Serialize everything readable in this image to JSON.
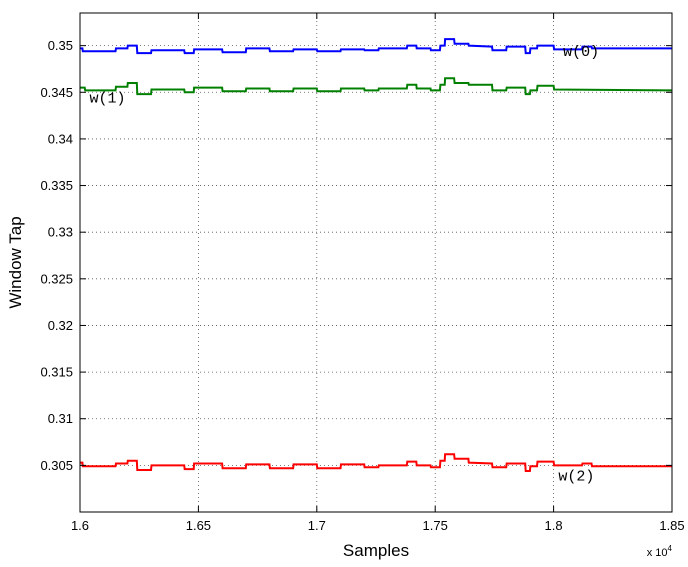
{
  "chart_data": {
    "type": "line",
    "xlabel": "Samples",
    "ylabel": "Window Tap",
    "x_multiplier_label": "x 10",
    "x_multiplier_exponent": "4",
    "xlim": [
      16000,
      18500
    ],
    "ylim": [
      0.3,
      0.3535
    ],
    "x_ticks": [
      16000,
      16500,
      17000,
      17500,
      18000,
      18500
    ],
    "x_tick_labels": [
      "1.6",
      "1.65",
      "1.7",
      "1.75",
      "1.8",
      "1.85"
    ],
    "y_ticks": [
      0.305,
      0.31,
      0.315,
      0.32,
      0.325,
      0.33,
      0.335,
      0.34,
      0.345,
      0.35
    ],
    "y_tick_labels": [
      "0.305",
      "0.31",
      "0.315",
      "0.32",
      "0.325",
      "0.33",
      "0.335",
      "0.34",
      "0.345",
      "0.35"
    ],
    "grid": true,
    "series": [
      {
        "name": "w(0)",
        "color": "#0000ff",
        "points": [
          [
            16000,
            0.3497
          ],
          [
            16010,
            0.3497
          ],
          [
            16012,
            0.3494
          ],
          [
            16150,
            0.3494
          ],
          [
            16152,
            0.3497
          ],
          [
            16200,
            0.3497
          ],
          [
            16202,
            0.35
          ],
          [
            16240,
            0.35
          ],
          [
            16242,
            0.3492
          ],
          [
            16300,
            0.3492
          ],
          [
            16302,
            0.3495
          ],
          [
            16440,
            0.3495
          ],
          [
            16442,
            0.3492
          ],
          [
            16480,
            0.3492
          ],
          [
            16482,
            0.3496
          ],
          [
            16600,
            0.3496
          ],
          [
            16602,
            0.3493
          ],
          [
            16700,
            0.3493
          ],
          [
            16702,
            0.3497
          ],
          [
            16800,
            0.3497
          ],
          [
            16802,
            0.3494
          ],
          [
            16900,
            0.3494
          ],
          [
            16902,
            0.3496
          ],
          [
            17000,
            0.3496
          ],
          [
            17002,
            0.3494
          ],
          [
            17100,
            0.3494
          ],
          [
            17102,
            0.3496
          ],
          [
            17200,
            0.3496
          ],
          [
            17202,
            0.3495
          ],
          [
            17260,
            0.3495
          ],
          [
            17262,
            0.3497
          ],
          [
            17380,
            0.3497
          ],
          [
            17382,
            0.35
          ],
          [
            17420,
            0.35
          ],
          [
            17422,
            0.3497
          ],
          [
            17480,
            0.3497
          ],
          [
            17482,
            0.3495
          ],
          [
            17520,
            0.3495
          ],
          [
            17522,
            0.35
          ],
          [
            17540,
            0.35
          ],
          [
            17542,
            0.3507
          ],
          [
            17580,
            0.3507
          ],
          [
            17582,
            0.3502
          ],
          [
            17640,
            0.3502
          ],
          [
            17642,
            0.35
          ],
          [
            17740,
            0.3499
          ],
          [
            17742,
            0.3495
          ],
          [
            17800,
            0.3495
          ],
          [
            17802,
            0.3499
          ],
          [
            17880,
            0.3499
          ],
          [
            17882,
            0.3492
          ],
          [
            17900,
            0.3492
          ],
          [
            17902,
            0.3497
          ],
          [
            17930,
            0.3497
          ],
          [
            17932,
            0.35
          ],
          [
            18000,
            0.35
          ],
          [
            18002,
            0.3496
          ],
          [
            18120,
            0.3496
          ],
          [
            18122,
            0.3499
          ],
          [
            18160,
            0.3499
          ],
          [
            18162,
            0.3497
          ],
          [
            18500,
            0.3497
          ]
        ]
      },
      {
        "name": "w(1)",
        "color": "#008000",
        "points": [
          [
            16000,
            0.3455
          ],
          [
            16020,
            0.3455
          ],
          [
            16022,
            0.3452
          ],
          [
            16150,
            0.3452
          ],
          [
            16152,
            0.3456
          ],
          [
            16200,
            0.3456
          ],
          [
            16202,
            0.346
          ],
          [
            16240,
            0.346
          ],
          [
            16242,
            0.3448
          ],
          [
            16300,
            0.3448
          ],
          [
            16302,
            0.3453
          ],
          [
            16440,
            0.3453
          ],
          [
            16442,
            0.345
          ],
          [
            16480,
            0.345
          ],
          [
            16482,
            0.3455
          ],
          [
            16600,
            0.3455
          ],
          [
            16602,
            0.3451
          ],
          [
            16700,
            0.3451
          ],
          [
            16702,
            0.3454
          ],
          [
            16800,
            0.3454
          ],
          [
            16802,
            0.3451
          ],
          [
            16900,
            0.3451
          ],
          [
            16902,
            0.3454
          ],
          [
            17000,
            0.3454
          ],
          [
            17002,
            0.3451
          ],
          [
            17100,
            0.3451
          ],
          [
            17102,
            0.3454
          ],
          [
            17200,
            0.3454
          ],
          [
            17202,
            0.3452
          ],
          [
            17260,
            0.3452
          ],
          [
            17262,
            0.3454
          ],
          [
            17380,
            0.3454
          ],
          [
            17382,
            0.3458
          ],
          [
            17420,
            0.3458
          ],
          [
            17422,
            0.3454
          ],
          [
            17480,
            0.3454
          ],
          [
            17482,
            0.3452
          ],
          [
            17520,
            0.3452
          ],
          [
            17522,
            0.3458
          ],
          [
            17540,
            0.3458
          ],
          [
            17542,
            0.3465
          ],
          [
            17580,
            0.3465
          ],
          [
            17582,
            0.346
          ],
          [
            17640,
            0.346
          ],
          [
            17642,
            0.3458
          ],
          [
            17740,
            0.3458
          ],
          [
            17742,
            0.3452
          ],
          [
            17800,
            0.3452
          ],
          [
            17802,
            0.3455
          ],
          [
            17880,
            0.3455
          ],
          [
            17882,
            0.3448
          ],
          [
            17900,
            0.3448
          ],
          [
            17902,
            0.3452
          ],
          [
            17930,
            0.3452
          ],
          [
            17932,
            0.3457
          ],
          [
            18000,
            0.3457
          ],
          [
            18002,
            0.3453
          ],
          [
            18500,
            0.3452
          ]
        ]
      },
      {
        "name": "w(2)",
        "color": "#ff0000",
        "points": [
          [
            16000,
            0.3053
          ],
          [
            16010,
            0.3053
          ],
          [
            16012,
            0.3049
          ],
          [
            16150,
            0.3049
          ],
          [
            16152,
            0.3052
          ],
          [
            16200,
            0.3052
          ],
          [
            16202,
            0.3055
          ],
          [
            16240,
            0.3055
          ],
          [
            16242,
            0.3045
          ],
          [
            16300,
            0.3045
          ],
          [
            16302,
            0.305
          ],
          [
            16440,
            0.305
          ],
          [
            16442,
            0.3046
          ],
          [
            16480,
            0.3046
          ],
          [
            16482,
            0.3052
          ],
          [
            16600,
            0.3052
          ],
          [
            16602,
            0.3047
          ],
          [
            16700,
            0.3047
          ],
          [
            16702,
            0.3051
          ],
          [
            16800,
            0.3051
          ],
          [
            16802,
            0.3047
          ],
          [
            16900,
            0.3047
          ],
          [
            16902,
            0.3051
          ],
          [
            17000,
            0.3051
          ],
          [
            17002,
            0.3047
          ],
          [
            17100,
            0.3047
          ],
          [
            17102,
            0.3051
          ],
          [
            17200,
            0.3051
          ],
          [
            17202,
            0.3048
          ],
          [
            17260,
            0.3048
          ],
          [
            17262,
            0.305
          ],
          [
            17380,
            0.305
          ],
          [
            17382,
            0.3054
          ],
          [
            17420,
            0.3054
          ],
          [
            17422,
            0.305
          ],
          [
            17480,
            0.305
          ],
          [
            17482,
            0.3048
          ],
          [
            17520,
            0.3048
          ],
          [
            17522,
            0.3055
          ],
          [
            17540,
            0.3055
          ],
          [
            17542,
            0.3062
          ],
          [
            17580,
            0.3062
          ],
          [
            17582,
            0.3057
          ],
          [
            17640,
            0.3057
          ],
          [
            17642,
            0.3053
          ],
          [
            17740,
            0.3052
          ],
          [
            17742,
            0.3048
          ],
          [
            17800,
            0.3048
          ],
          [
            17802,
            0.3052
          ],
          [
            17880,
            0.3052
          ],
          [
            17882,
            0.3044
          ],
          [
            17900,
            0.3044
          ],
          [
            17902,
            0.3049
          ],
          [
            17930,
            0.3049
          ],
          [
            17932,
            0.3054
          ],
          [
            18000,
            0.3054
          ],
          [
            18002,
            0.305
          ],
          [
            18120,
            0.305
          ],
          [
            18122,
            0.3052
          ],
          [
            18160,
            0.3052
          ],
          [
            18162,
            0.3049
          ],
          [
            18500,
            0.3049
          ]
        ]
      }
    ],
    "annotations": [
      {
        "text": "w(0)",
        "x": 18040,
        "y": 0.3489
      },
      {
        "text": "w(1)",
        "x": 16040,
        "y": 0.3439
      },
      {
        "text": "w(2)",
        "x": 18020,
        "y": 0.3034
      }
    ]
  }
}
